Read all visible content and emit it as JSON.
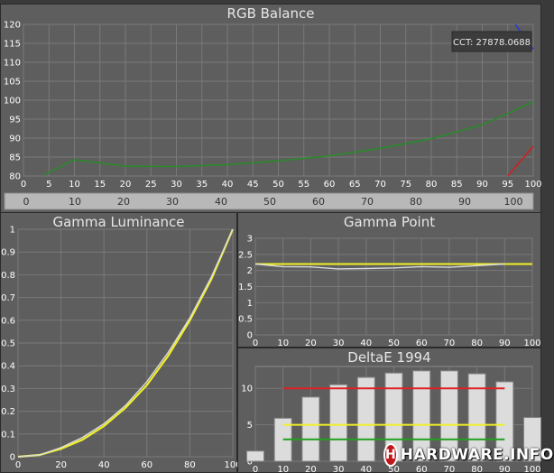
{
  "watermark": {
    "badge": "H",
    "text": "HARDWARE.INFO"
  },
  "chart_data": [
    {
      "type": "line",
      "title": "RGB Balance",
      "xlim": [
        0,
        100
      ],
      "ylim": [
        80,
        120
      ],
      "x_ticks": [
        0,
        5,
        10,
        15,
        20,
        25,
        30,
        35,
        40,
        45,
        50,
        55,
        60,
        65,
        70,
        75,
        80,
        85,
        90,
        95,
        100
      ],
      "y_ticks": [
        80,
        85,
        90,
        95,
        100,
        105,
        110,
        115,
        120
      ],
      "bottom_scale": [
        0,
        10,
        20,
        30,
        40,
        50,
        60,
        70,
        80,
        90,
        100
      ],
      "annotation": "CCT: 27878.0688",
      "grid": true,
      "series": [
        {
          "color": "#2a8a2a",
          "x": [
            4,
            10,
            20,
            30,
            40,
            50,
            60,
            70,
            80,
            90,
            95,
            100
          ],
          "y": [
            80.3,
            84.3,
            82.6,
            82.5,
            83.0,
            84.0,
            85.3,
            87.3,
            89.8,
            93.5,
            96.5,
            99.6
          ]
        },
        {
          "color": "#cc2222",
          "x": [
            95,
            100
          ],
          "y": [
            80,
            87.8
          ]
        },
        {
          "color": "#2a3acc",
          "x": [
            96.5,
            100
          ],
          "y": [
            120,
            113.5
          ]
        }
      ]
    },
    {
      "type": "line",
      "title": "Gamma Luminance",
      "xlim": [
        0,
        100
      ],
      "ylim": [
        0,
        1
      ],
      "x_ticks": [
        0,
        20,
        40,
        60,
        80,
        100
      ],
      "y_ticks": [
        0,
        0.1,
        0.2,
        0.3,
        0.4,
        0.5,
        0.6,
        0.7,
        0.8,
        0.9,
        1
      ],
      "grid": true,
      "series": [
        {
          "color": "#f0f028",
          "x": [
            0,
            10,
            20,
            30,
            40,
            50,
            60,
            70,
            80,
            90,
            100
          ],
          "y": [
            0,
            0.008,
            0.035,
            0.075,
            0.135,
            0.215,
            0.315,
            0.445,
            0.6,
            0.78,
            1.0
          ]
        },
        {
          "color": "#dcdcdc",
          "x": [
            0,
            10,
            20,
            30,
            40,
            50,
            60,
            70,
            80,
            90,
            100
          ],
          "y": [
            0,
            0.008,
            0.04,
            0.085,
            0.145,
            0.225,
            0.33,
            0.46,
            0.61,
            0.79,
            1.0
          ]
        }
      ]
    },
    {
      "type": "line",
      "title": "Gamma Point",
      "xlim": [
        0,
        100
      ],
      "ylim": [
        0,
        3
      ],
      "x_ticks": [
        0,
        10,
        20,
        30,
        40,
        50,
        60,
        70,
        80,
        90,
        100
      ],
      "y_ticks": [
        0,
        0.5,
        1,
        1.5,
        2,
        2.5,
        3
      ],
      "grid": true,
      "series": [
        {
          "color": "#f0f028",
          "x": [
            0,
            100
          ],
          "y": [
            2.2,
            2.2
          ]
        },
        {
          "color": "#dcdcdc",
          "x": [
            0,
            10,
            20,
            30,
            40,
            50,
            60,
            70,
            80,
            90
          ],
          "y": [
            2.2,
            2.12,
            2.11,
            2.05,
            2.06,
            2.08,
            2.12,
            2.1,
            2.15,
            2.2
          ]
        }
      ]
    },
    {
      "type": "bar",
      "title": "DeltaE 1994",
      "xlim": [
        0,
        100
      ],
      "ylim": [
        0,
        13
      ],
      "x_ticks": [
        0,
        10,
        20,
        30,
        40,
        50,
        60,
        70,
        80,
        90,
        100
      ],
      "y_ticks": [
        0,
        5,
        10
      ],
      "grid": true,
      "categories": [
        0,
        10,
        20,
        30,
        40,
        50,
        60,
        70,
        80,
        90,
        100
      ],
      "values": [
        1.4,
        5.9,
        8.8,
        10.5,
        11.5,
        12.1,
        12.4,
        12.4,
        12.0,
        10.9,
        6.0
      ],
      "reference_lines": [
        {
          "color": "#e02020",
          "y": 10
        },
        {
          "color": "#f0f028",
          "y": 5
        },
        {
          "color": "#20a020",
          "y": 3
        }
      ]
    }
  ]
}
